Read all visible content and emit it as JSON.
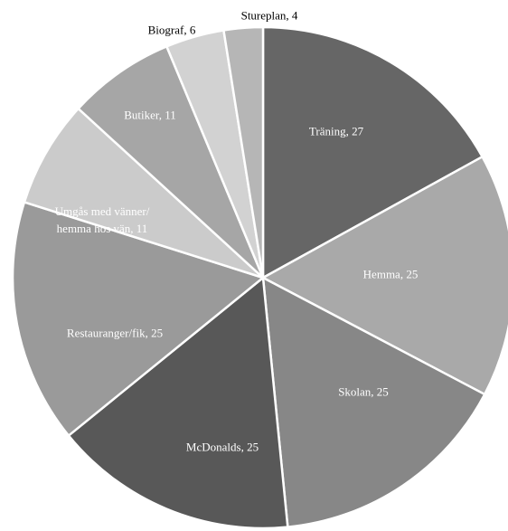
{
  "chart_data": {
    "type": "pie",
    "values": [
      27,
      25,
      25,
      25,
      25,
      11,
      11,
      6,
      4
    ],
    "value_labels": [
      "Träning, 27",
      "Hemma, 25",
      "Skolan, 25",
      "McDonalds, 25",
      "Restauranger/fik, 25",
      "Umgås med vänner/\nhemma hos vän, 11",
      "Butiker, 11",
      "Biograf, 6",
      "Stureplan, 4"
    ],
    "colors": [
      "#666666",
      "#a9a9a9",
      "#878787",
      "#585858",
      "#9a9a9a",
      "#cbcbcb",
      "#a6a6a6",
      "#d2d2d2",
      "#b6b6b6"
    ]
  }
}
